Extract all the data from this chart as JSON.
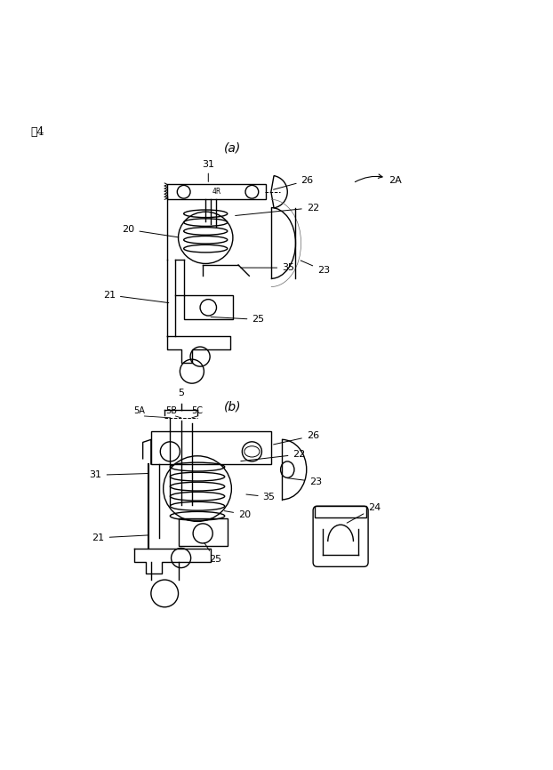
{
  "title": "図4",
  "fig_a_label": "(a)",
  "fig_b_label": "(b)",
  "background_color": "#ffffff",
  "line_color": "#000000",
  "fig_size": [
    6.22,
    8.66
  ],
  "dpi": 100
}
